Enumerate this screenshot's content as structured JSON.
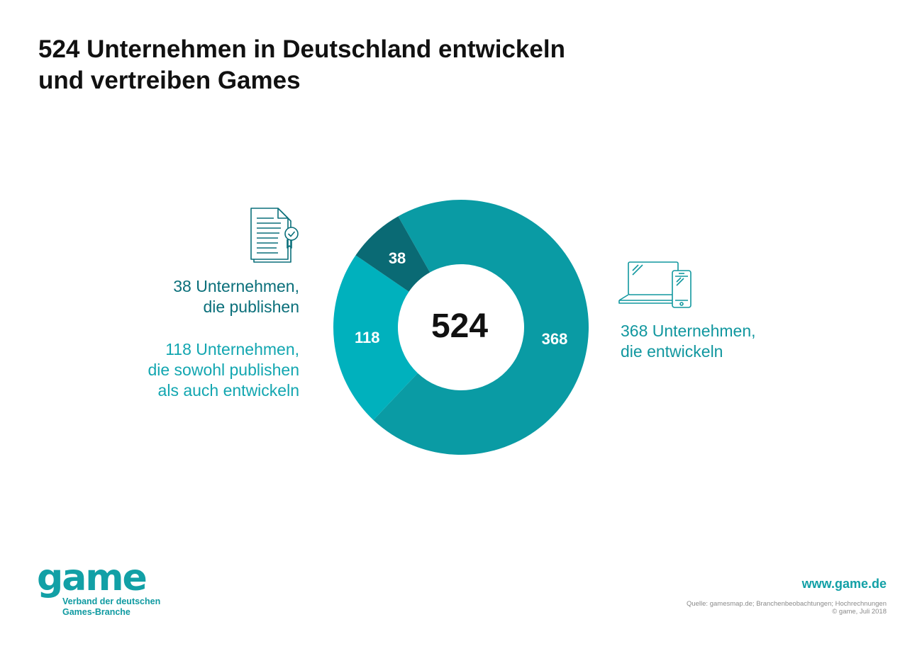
{
  "title": {
    "line1": "524 Unternehmen in Deutschland entwickeln",
    "line2": "und vertreiben Games"
  },
  "chart_data": {
    "type": "pie",
    "variant": "donut",
    "title": "524 Unternehmen in Deutschland entwickeln und vertreiben Games",
    "total": 524,
    "center_label": "524",
    "categories": [
      "368 Unternehmen, die entwickeln",
      "118 Unternehmen, die sowohl publishen als auch entwickeln",
      "38 Unternehmen, die publishen"
    ],
    "values": [
      368,
      118,
      38
    ],
    "value_labels": [
      "368",
      "118",
      "38"
    ],
    "colors": [
      "#0a9ba4",
      "#00b1bd",
      "#0a6a74"
    ]
  },
  "labels": {
    "publish": {
      "line1": "38 Unternehmen,",
      "line2": "die publishen"
    },
    "both": {
      "line1": "118 Unternehmen,",
      "line2": "die sowohl publishen",
      "line3": "als auch entwickeln"
    },
    "develop": {
      "line1": "368 Unternehmen,",
      "line2": "die entwickeln"
    }
  },
  "icons": {
    "publish": "certificate-document-icon",
    "develop": "laptop-smartphone-icon"
  },
  "footer": {
    "logo_text": "game",
    "logo_sub_line1": "Verband der deutschen",
    "logo_sub_line2": "Games-Branche",
    "url": "www.game.de",
    "source_line1": "Quelle: gamesmap.de; Branchenbeobachtungen; Hochrechnungen",
    "source_line2": "© game, Juli 2018"
  }
}
